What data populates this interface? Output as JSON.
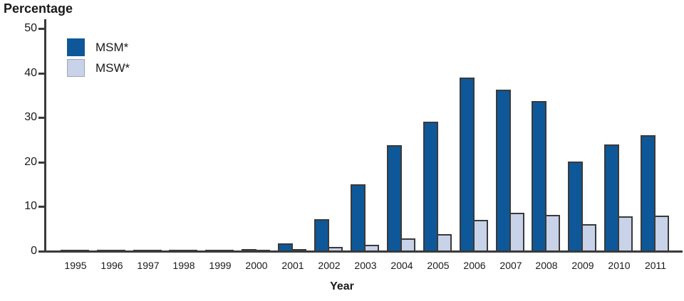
{
  "chart_data": {
    "type": "bar",
    "title": "",
    "ylabel": "Percentage",
    "xlabel": "Year",
    "ylim": [
      0,
      50
    ],
    "yticks": [
      0,
      10,
      20,
      30,
      40,
      50
    ],
    "grid": false,
    "legend_position": "top-left",
    "categories": [
      "1995",
      "1996",
      "1997",
      "1998",
      "1999",
      "2000",
      "2001",
      "2002",
      "2003",
      "2004",
      "2005",
      "2006",
      "2007",
      "2008",
      "2009",
      "2010",
      "2011"
    ],
    "series": [
      {
        "name": "MSM*",
        "color": "#0e5899",
        "values": [
          0.3,
          0.1,
          0.3,
          0.1,
          0.3,
          0.5,
          1.7,
          7.2,
          15.0,
          23.8,
          29.0,
          39.0,
          36.2,
          33.7,
          20.2,
          24.0,
          26.1
        ]
      },
      {
        "name": "MSW*",
        "color": "#c8d2e8",
        "values": [
          0.1,
          0.1,
          0.1,
          0.1,
          0.3,
          0.2,
          0.5,
          1.0,
          1.5,
          2.9,
          3.8,
          7.0,
          8.7,
          8.2,
          6.0,
          7.9,
          8.0
        ]
      }
    ],
    "bar_outline_color": "#3a3a3a",
    "axis_color": "#3a3a3a",
    "text_color": "#1a1a1a"
  }
}
